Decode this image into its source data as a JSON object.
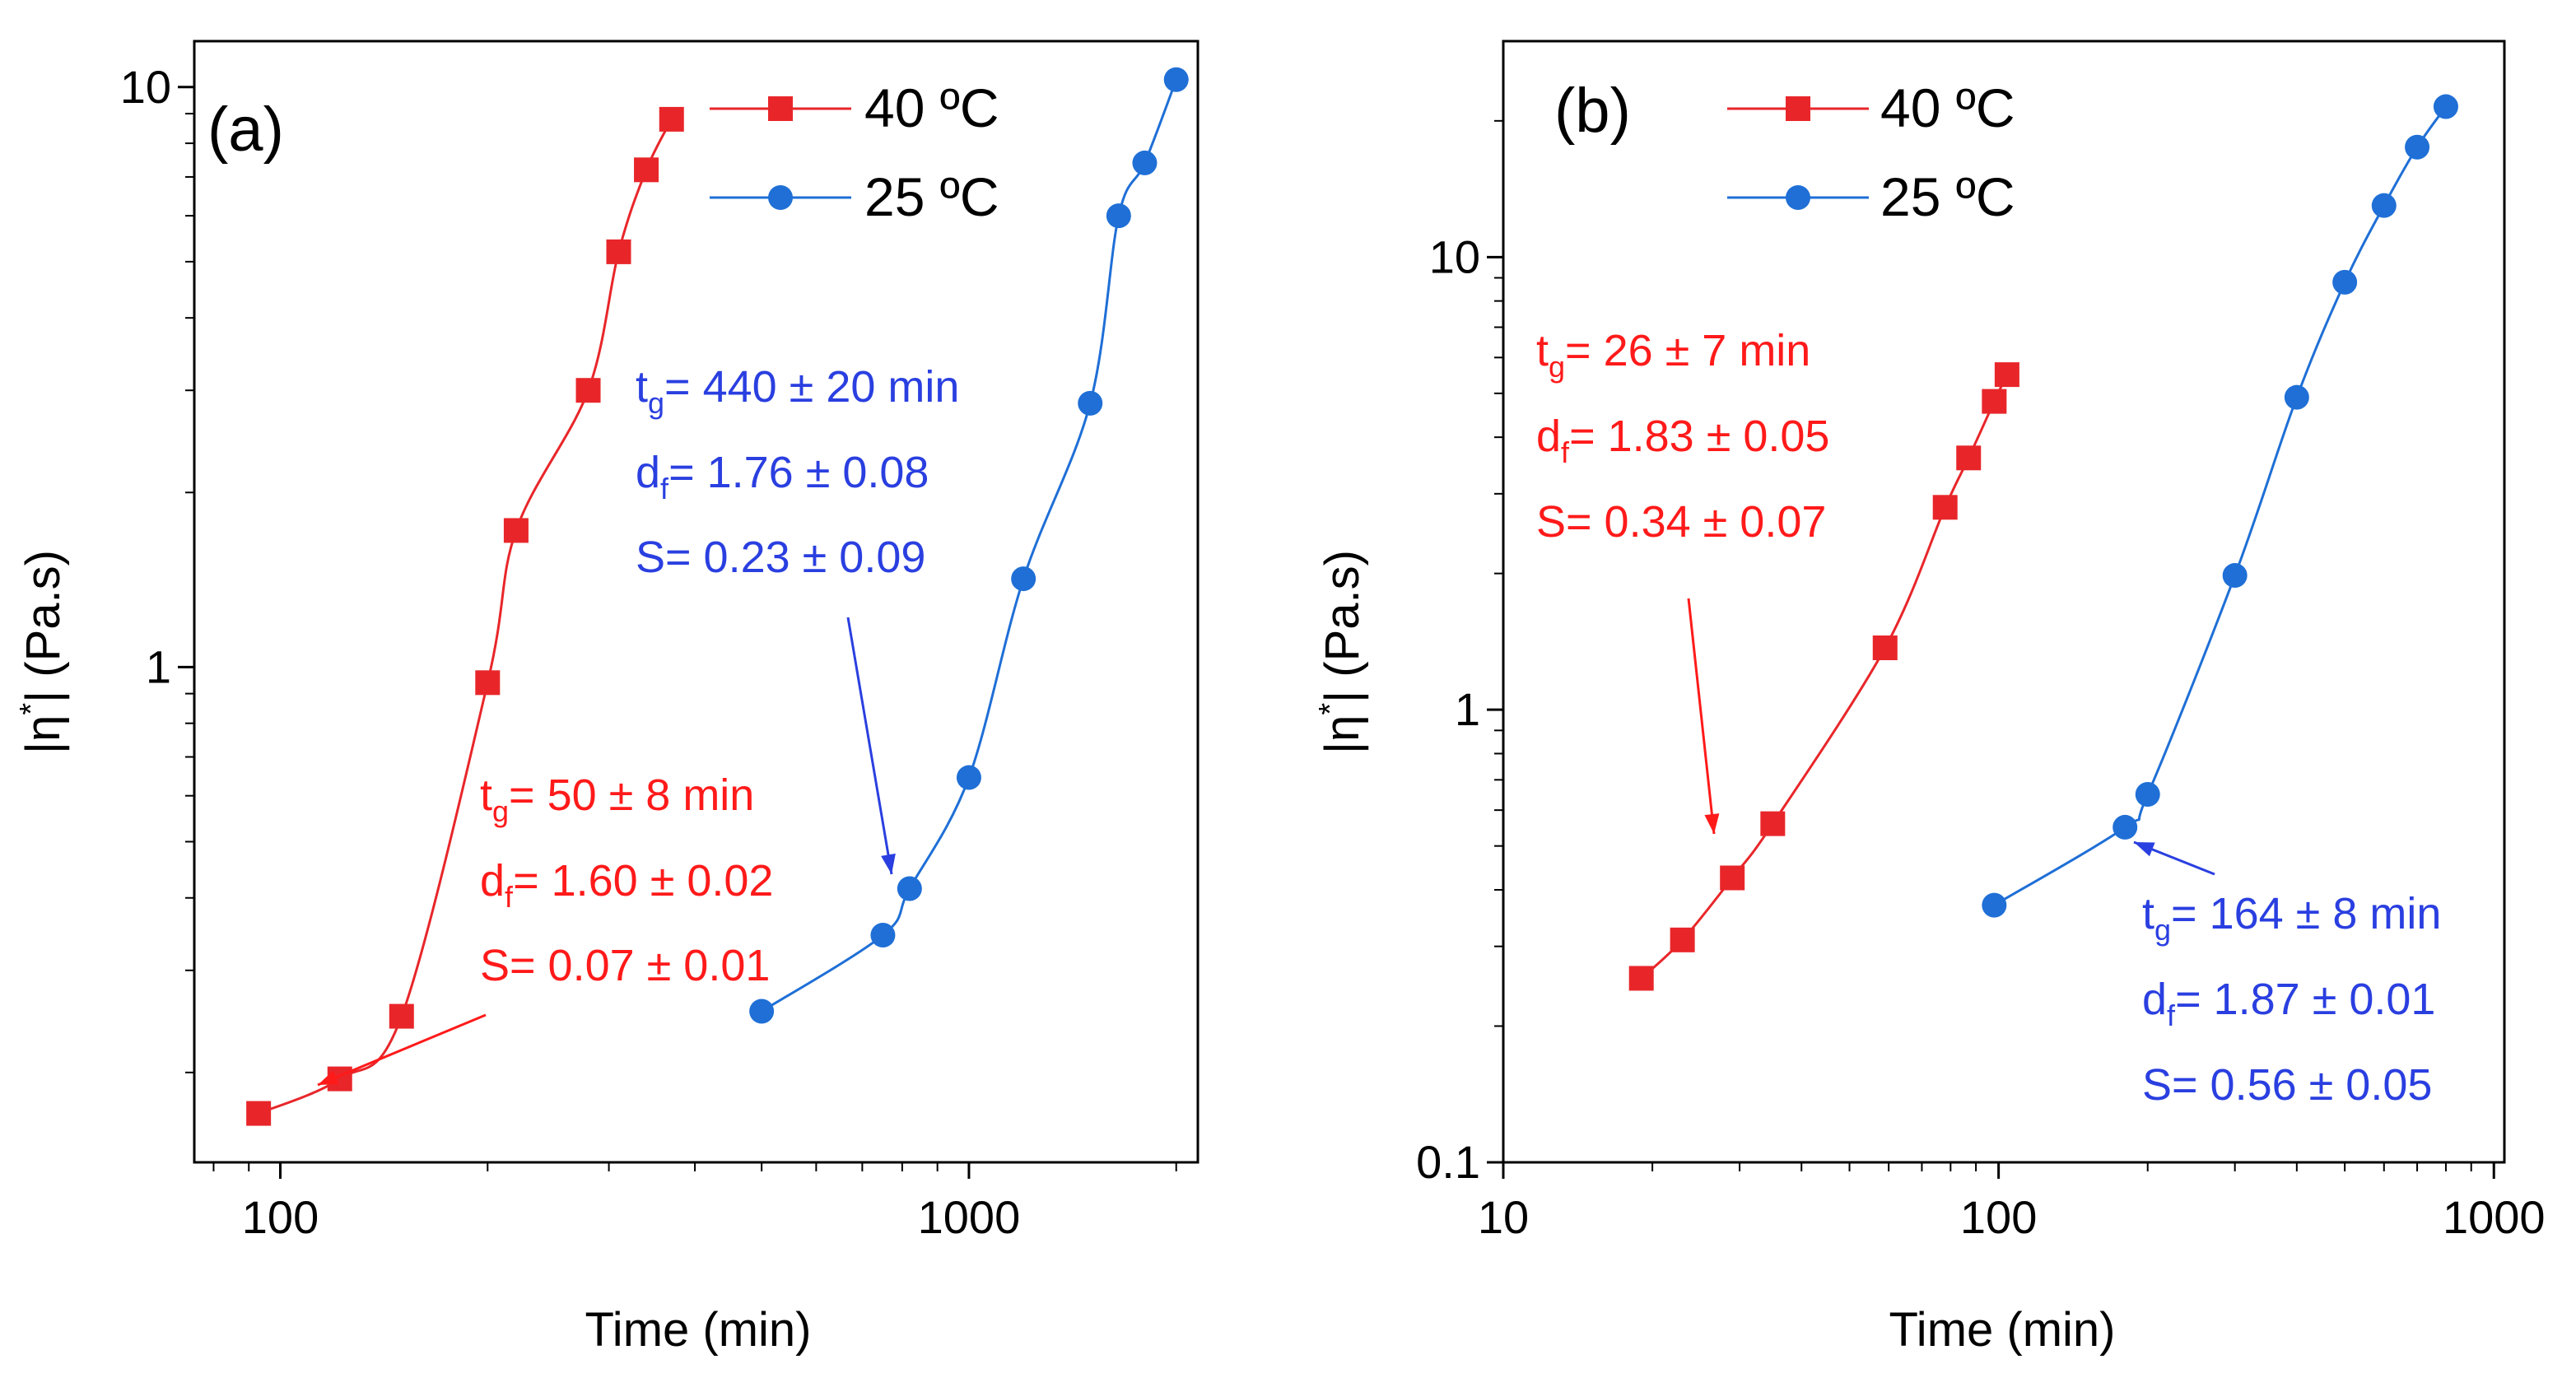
{
  "colors": {
    "red": "#e8262a",
    "blue": "#1f6fd6",
    "ann_red": "#ff1a1a",
    "ann_blue": "#2a3fe0",
    "axis": "#000000"
  },
  "chart_data": [
    {
      "panel": "a",
      "panel_label": "(a)",
      "type": "line",
      "xscale": "log",
      "yscale": "log",
      "xlabel": "Time (min)",
      "ylabel_main": "|η",
      "ylabel_sup": "*",
      "ylabel_rest": "| (Pa.s)",
      "xlim": [
        75,
        2150
      ],
      "ylim": [
        0.14,
        12.0
      ],
      "xticks": [
        {
          "value": 100,
          "label": "100"
        },
        {
          "value": 1000,
          "label": "1000"
        }
      ],
      "yticks": [
        {
          "value": 1,
          "label": "1"
        },
        {
          "value": 10,
          "label": "10"
        }
      ],
      "legend": {
        "position": "top-center",
        "entries": [
          "40 ºC",
          "25 ºC"
        ]
      },
      "series": [
        {
          "name": "40 ºC",
          "color_key": "red",
          "marker": "square",
          "x": [
            93,
            122,
            150,
            200,
            220,
            280,
            310,
            340,
            370
          ],
          "y": [
            0.17,
            0.195,
            0.25,
            0.94,
            1.72,
            3.0,
            5.2,
            7.2,
            8.8
          ]
        },
        {
          "name": "25 ºC",
          "color_key": "blue",
          "marker": "circle",
          "x": [
            500,
            750,
            820,
            1000,
            1200,
            1500,
            1650,
            1800,
            2000
          ],
          "y": [
            0.255,
            0.345,
            0.415,
            0.645,
            1.42,
            2.85,
            6.0,
            7.4,
            10.3
          ]
        }
      ],
      "annotations": [
        {
          "color_key": "ann_red",
          "anchor": "lower-middle",
          "tg": "= 50 ± 8 min",
          "df": "= 1.60 ± 0.02",
          "s": "S= 0.07 ± 0.01"
        },
        {
          "color_key": "ann_blue",
          "anchor": "upper-middle-right",
          "tg": "= 440 ± 20 min",
          "df": "= 1.76 ± 0.08",
          "s": "S= 0.23 ± 0.09"
        }
      ]
    },
    {
      "panel": "b",
      "panel_label": "(b)",
      "type": "line",
      "xscale": "log",
      "yscale": "log",
      "xlabel": "Time (min)",
      "ylabel_main": "|η",
      "ylabel_sup": "*",
      "ylabel_rest": "| (Pa.s)",
      "xlim": [
        10,
        1050
      ],
      "ylim": [
        0.1,
        30
      ],
      "xticks": [
        {
          "value": 10,
          "label": "10"
        },
        {
          "value": 100,
          "label": "100"
        },
        {
          "value": 1000,
          "label": "1000"
        }
      ],
      "yticks": [
        {
          "value": 0.1,
          "label": "0.1"
        },
        {
          "value": 1,
          "label": "1"
        },
        {
          "value": 10,
          "label": "10"
        }
      ],
      "legend": {
        "position": "top-center",
        "entries": [
          "40 ºC",
          "25 ºC"
        ]
      },
      "series": [
        {
          "name": "40 ºC",
          "color_key": "red",
          "marker": "square",
          "x": [
            19,
            23,
            29,
            35,
            59,
            78,
            87,
            98,
            104
          ],
          "y": [
            0.255,
            0.31,
            0.425,
            0.56,
            1.37,
            2.8,
            3.6,
            4.8,
            5.5
          ]
        },
        {
          "name": "25 ºC",
          "color_key": "blue",
          "marker": "circle",
          "x": [
            98,
            180,
            200,
            300,
            400,
            500,
            600,
            700,
            800
          ],
          "y": [
            0.37,
            0.55,
            0.65,
            1.98,
            4.9,
            8.8,
            13.0,
            17.5,
            21.5
          ]
        }
      ],
      "annotations": [
        {
          "color_key": "ann_red",
          "anchor": "upper-left",
          "tg": "= 26 ± 7 min",
          "df": "= 1.83 ± 0.05",
          "s": "S= 0.34 ± 0.07"
        },
        {
          "color_key": "ann_blue",
          "anchor": "lower-right",
          "tg": "= 164 ± 8 min",
          "df": "= 1.87 ± 0.01",
          "s": "S= 0.56 ± 0.05"
        }
      ]
    }
  ]
}
